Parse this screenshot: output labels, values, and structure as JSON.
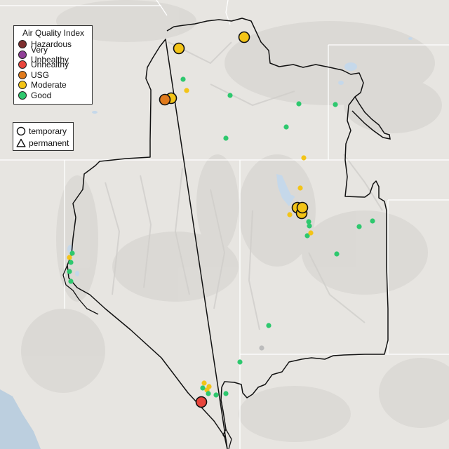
{
  "legend": {
    "title": "Air Quality Index",
    "categories": [
      {
        "label": "Hazardous",
        "color": "#7e2f2f"
      },
      {
        "label": "Very Unhealthy",
        "color": "#8f3f97"
      },
      {
        "label": "Unhealthy",
        "color": "#e8453c"
      },
      {
        "label": "USG",
        "color": "#e07a1c"
      },
      {
        "label": "Moderate",
        "color": "#f3c417"
      },
      {
        "label": "Good",
        "color": "#2ec86e"
      }
    ],
    "monitor_types": [
      {
        "label": "temporary",
        "shape": "circle-icon"
      },
      {
        "label": "permanent",
        "shape": "triangle-icon"
      }
    ]
  },
  "map_style": {
    "land": "#e7e5e1",
    "hills": "#d6d4d0",
    "water": "#c5d8ea",
    "ocean": "#bccfdf",
    "outline": "#111111",
    "state_lines": "#ffffff"
  }
}
